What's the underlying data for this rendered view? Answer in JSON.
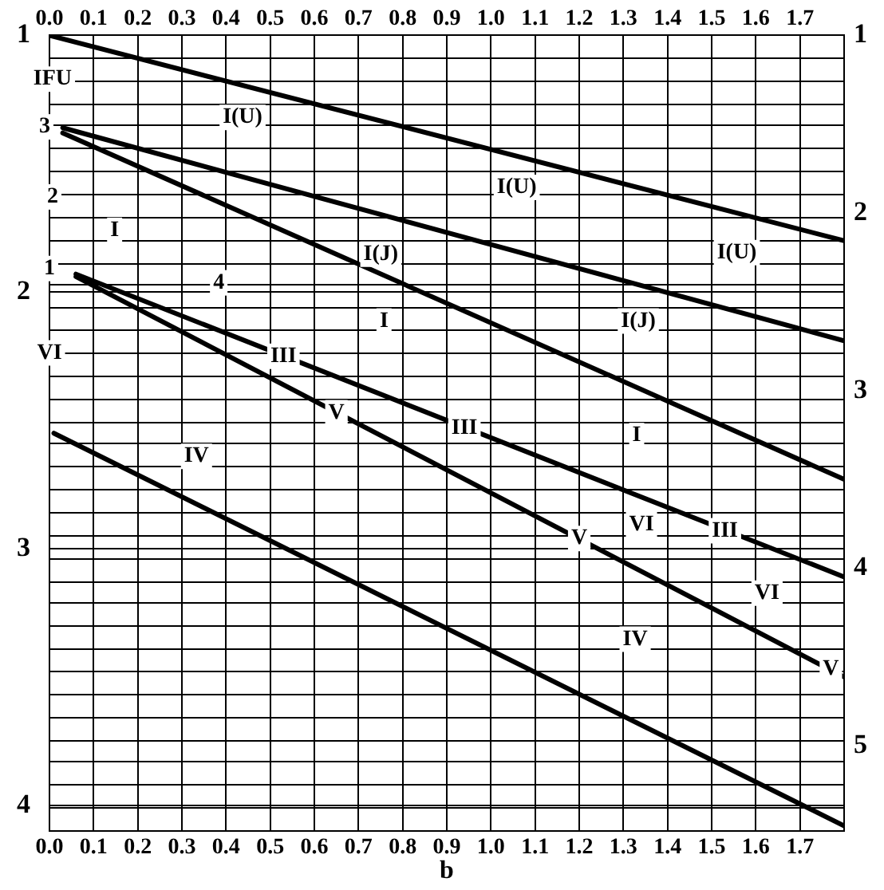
{
  "chart_data": {
    "type": "line",
    "xlabel": "b",
    "xlim": [
      0,
      1.8
    ],
    "xticks": [
      {
        "value": 0,
        "label": "0.0"
      },
      0.1,
      0.2,
      0.3,
      0.4,
      0.5,
      0.6,
      0.7,
      0.8,
      0.9,
      {
        "value": 1,
        "label": "1.0"
      },
      1.1,
      1.2,
      1.3,
      1.4,
      1.5,
      1.6,
      1.7
    ],
    "x2lim": [
      0,
      1.8
    ],
    "x2ticks": [
      {
        "value": 0,
        "label": "0.0"
      },
      0.1,
      0.2,
      0.3,
      0.4,
      0.5,
      0.6,
      0.7,
      0.8,
      0.9,
      {
        "value": 1,
        "label": "1.0"
      },
      1.1,
      1.2,
      1.3,
      1.4,
      1.5,
      1.6,
      1.7
    ],
    "ylim": [
      4.1,
      1
    ],
    "yticks": [
      1,
      {
        "value": 1.09,
        "label": null
      },
      {
        "value": 1.18,
        "label": null
      },
      {
        "value": 1.27,
        "label": null
      },
      {
        "value": 1.35,
        "label": null
      },
      {
        "value": 1.44,
        "label": null
      },
      {
        "value": 1.53,
        "label": null
      },
      {
        "value": 1.62,
        "label": null
      },
      {
        "value": 1.71,
        "label": null
      },
      {
        "value": 1.8,
        "label": null
      },
      {
        "value": 1.89,
        "label": null
      },
      {
        "value": 1.97,
        "label": null
      },
      2,
      {
        "value": 2.06,
        "label": null
      },
      {
        "value": 2.15,
        "label": null
      },
      {
        "value": 2.24,
        "label": null
      },
      {
        "value": 2.33,
        "label": null
      },
      {
        "value": 2.42,
        "label": null
      },
      {
        "value": 2.51,
        "label": null
      },
      {
        "value": 2.59,
        "label": null
      },
      {
        "value": 2.68,
        "label": null
      },
      {
        "value": 2.77,
        "label": null
      },
      {
        "value": 2.86,
        "label": null
      },
      {
        "value": 2.95,
        "label": null
      },
      3,
      {
        "value": 3.04,
        "label": null
      },
      {
        "value": 3.13,
        "label": null
      },
      {
        "value": 3.21,
        "label": null
      },
      {
        "value": 3.3,
        "label": null
      },
      {
        "value": 3.39,
        "label": null
      },
      {
        "value": 3.48,
        "label": null
      },
      {
        "value": 3.57,
        "label": null
      },
      {
        "value": 3.66,
        "label": null
      },
      {
        "value": 3.75,
        "label": null
      },
      {
        "value": 3.83,
        "label": null
      },
      {
        "value": 3.92,
        "label": null
      },
      4,
      {
        "value": 4.01,
        "label": null
      }
    ],
    "y2lim": [
      5.48,
      1
    ],
    "y2ticks": [
      1,
      2,
      3,
      4,
      5
    ],
    "grid": true,
    "legend": false,
    "marker": "none",
    "line_style": "solid",
    "series": [
      {
        "color": "#000000",
        "x": [
          0,
          1.8
        ],
        "values": [
          1.0,
          1.8
        ]
      },
      {
        "color": "#000000",
        "x": [
          0.03,
          1.8
        ],
        "values": [
          1.36,
          2.19
        ]
      },
      {
        "color": "#000000",
        "x": [
          0.03,
          1.8
        ],
        "values": [
          1.38,
          2.73
        ]
      },
      {
        "color": "#000000",
        "x": [
          0.06,
          1.8
        ],
        "values": [
          1.93,
          3.11
        ]
      },
      {
        "color": "#000000",
        "x": [
          0.06,
          1.8
        ],
        "values": [
          1.94,
          3.5
        ]
      },
      {
        "color": "#000000",
        "x": [
          0.01,
          1.8
        ],
        "values": [
          2.55,
          4.08
        ]
      }
    ],
    "annotations": [
      "IFU",
      "I(U)",
      "I(U)",
      "I(U)",
      "3",
      "2",
      "I",
      "I(J)",
      "I(J)",
      "1",
      "4",
      "I",
      "VI",
      {
        "text": "III",
        "x": 0.53,
        "y": 2.25
      },
      {
        "text": "V",
        "x": 0.65,
        "y": 2.47
      },
      {
        "text": "III",
        "x": 0.94,
        "y": 2.53
      },
      "I",
      "IV",
      "VI",
      {
        "text": "V",
        "x": 1.2,
        "y": 2.96
      },
      {
        "text": "III",
        "x": 1.53,
        "y": 2.93
      },
      "VI",
      "IV",
      {
        "text": "V",
        "x": 1.77,
        "y": 3.47
      }
    ]
  }
}
